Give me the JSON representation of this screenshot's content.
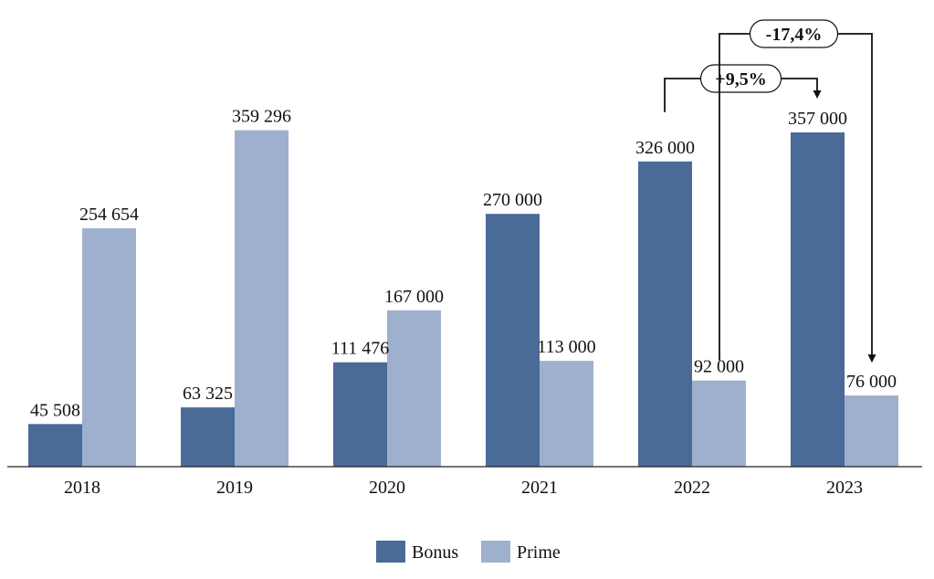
{
  "chart_data": {
    "type": "bar",
    "categories": [
      "2018",
      "2019",
      "2020",
      "2021",
      "2022",
      "2023"
    ],
    "series": [
      {
        "name": "Bonus",
        "color": "#4A6A98",
        "values": [
          45508,
          63325,
          111476,
          270000,
          326000,
          357000
        ],
        "labels": [
          "45 508",
          "63 325",
          "111 476",
          "270 000",
          "326 000",
          "357 000"
        ]
      },
      {
        "name": "Prime",
        "color": "#9EB0CD",
        "values": [
          254654,
          359296,
          167000,
          113000,
          92000,
          76000
        ],
        "labels": [
          "254 654",
          "359 296",
          "167 000",
          "113 000",
          "92 000",
          "76 000"
        ]
      }
    ],
    "ylim": [
      0,
      400000
    ],
    "grid": false,
    "legend_position": "bottom-center",
    "annotations": [
      {
        "text": "+9,5%",
        "from_series": "Bonus",
        "from_category": "2022",
        "to_series": "Bonus",
        "to_category": "2023"
      },
      {
        "text": "-17,4%",
        "from_series": "Prime",
        "from_category": "2022",
        "to_series": "Prime",
        "to_category": "2023"
      }
    ]
  }
}
